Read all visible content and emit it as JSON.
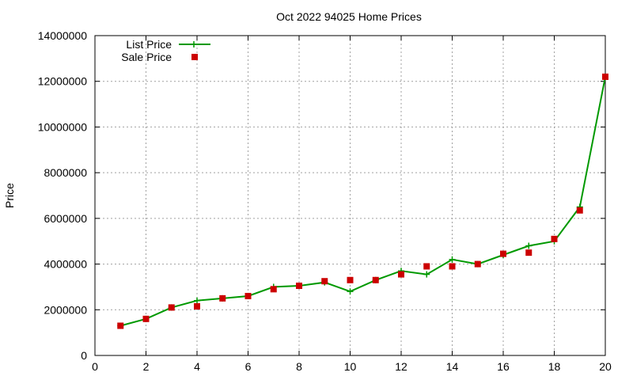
{
  "chart_data": {
    "type": "line",
    "title": "Oct 2022 94025 Home Prices",
    "xlabel": "",
    "ylabel": "Price",
    "xlim": [
      0,
      20
    ],
    "ylim": [
      0,
      14000000
    ],
    "x_ticks": [
      "0",
      "2",
      "4",
      "6",
      "8",
      "10",
      "12",
      "14",
      "16",
      "18",
      "20"
    ],
    "y_ticks": [
      "0",
      "2000000",
      "4000000",
      "6000000",
      "8000000",
      "10000000",
      "12000000",
      "14000000"
    ],
    "grid": true,
    "legend_position": "top-left",
    "x": [
      1,
      2,
      3,
      4,
      5,
      6,
      7,
      8,
      9,
      10,
      11,
      12,
      13,
      14,
      15,
      16,
      17,
      18,
      19,
      20
    ],
    "series": [
      {
        "name": "List Price",
        "style": "line-with-plus-markers",
        "color": "#009900",
        "values": [
          1300000,
          1600000,
          2100000,
          2400000,
          2500000,
          2600000,
          3000000,
          3050000,
          3200000,
          2800000,
          3300000,
          3700000,
          3550000,
          4200000,
          4000000,
          4400000,
          4800000,
          5000000,
          6500000,
          12200000
        ]
      },
      {
        "name": "Sale Price",
        "style": "square-markers",
        "color": "#cc0000",
        "values": [
          1300000,
          1600000,
          2100000,
          2150000,
          2500000,
          2600000,
          2900000,
          3050000,
          3250000,
          3300000,
          3300000,
          3550000,
          3900000,
          3900000,
          4000000,
          4450000,
          4500000,
          5100000,
          6350000,
          12200000
        ]
      }
    ]
  }
}
